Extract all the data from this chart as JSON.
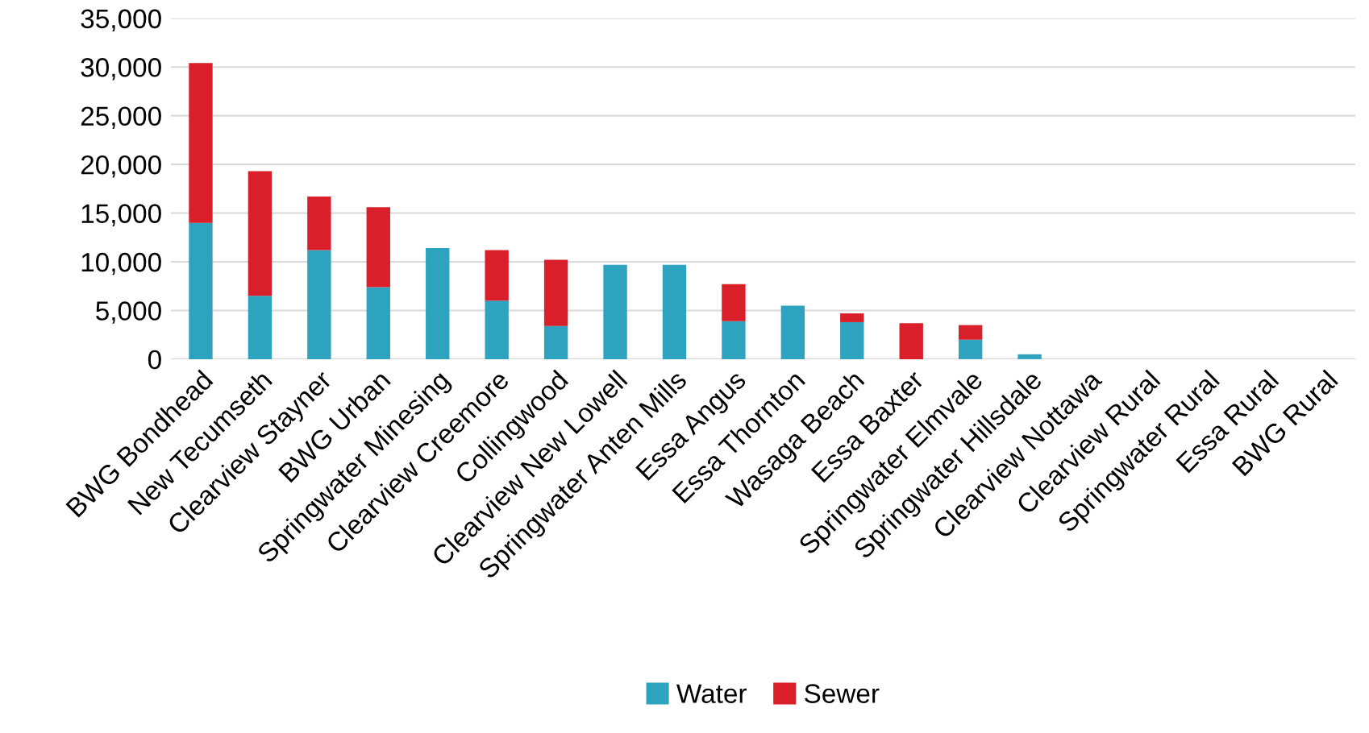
{
  "chart_data": {
    "type": "bar",
    "stacked": true,
    "categories": [
      "BWG Bondhead",
      "New Tecumseth",
      "Clearview Stayner",
      "BWG Urban",
      "Springwater Minesing",
      "Clearview Creemore",
      "Collingwood",
      "Clearview New Lowell",
      "Springwater Anten Mills",
      "Essa Angus",
      "Essa Thornton",
      "Wasaga Beach",
      "Essa Baxter",
      "Springwater Elmvale",
      "Springwater Hillsdale",
      "Clearview Nottawa",
      "Clearview Rural",
      "Springwater Rural",
      "Essa Rural",
      "BWG Rural"
    ],
    "series": [
      {
        "name": "Water",
        "color": "#2ea3c0",
        "values": [
          14000,
          6500,
          11200,
          7400,
          11400,
          6000,
          3400,
          9700,
          9700,
          3900,
          5500,
          3800,
          0,
          2000,
          500,
          0,
          0,
          0,
          0,
          0
        ]
      },
      {
        "name": "Sewer",
        "color": "#d91f29",
        "values": [
          16400,
          12800,
          5500,
          8200,
          0,
          5200,
          6800,
          0,
          0,
          3800,
          0,
          900,
          3700,
          1500,
          0,
          0,
          0,
          0,
          0,
          0
        ]
      }
    ],
    "ylim": [
      0,
      35000
    ],
    "yticks": [
      {
        "value": 0,
        "label": "0"
      },
      {
        "value": 5000,
        "label": "5,000"
      },
      {
        "value": 10000,
        "label": "10,000"
      },
      {
        "value": 15000,
        "label": "15,000"
      },
      {
        "value": 20000,
        "label": "20,000"
      },
      {
        "value": 25000,
        "label": "25,000"
      },
      {
        "value": 30000,
        "label": "30,000"
      },
      {
        "value": 35000,
        "label": "35,000"
      }
    ],
    "grid": "y",
    "legend": "bottom"
  }
}
